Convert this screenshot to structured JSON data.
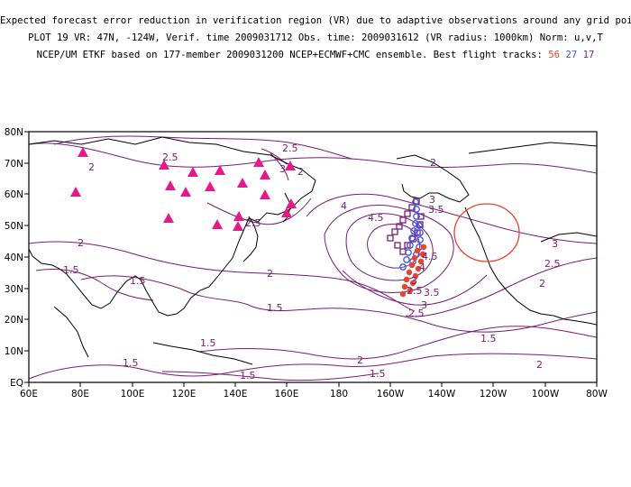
{
  "header": {
    "line1": "Expected forecast error reduction in verification region (VR) due to adaptive observations around any grid point.",
    "line2": "PLOT 19 VR: 47N, -124W, Verif. time 2009031712 Obs. time: 2009031612 (VR radius: 1000km) Norm: u,v,T",
    "line3_prefix": "NCEP/UM ETKF based on 177-member 2009031200 NCEP+ECMWF+CMC ensemble. Best flight tracks:",
    "track_a": "56",
    "track_b": "27",
    "track_c": "17"
  },
  "map": {
    "lon_labels": [
      "60E",
      "80E",
      "100E",
      "120E",
      "140E",
      "160E",
      "180",
      "160W",
      "140W",
      "120W",
      "100W",
      "80W"
    ],
    "lat_labels": [
      "80N",
      "70N",
      "60N",
      "50N",
      "40N",
      "30N",
      "20N",
      "10N",
      "EQ"
    ],
    "contour_labels": [
      "2",
      "2.5",
      "3",
      "2.5",
      "2",
      "2",
      "2.5",
      "4",
      "4.5",
      "3.5",
      "2",
      "1.5",
      "1.5",
      "2",
      "2.5",
      "3",
      "3.5",
      "4",
      "4.5",
      "3",
      "2.5",
      "2",
      "1.5",
      "1.5",
      "1.5",
      "1.5",
      "1.5",
      "2",
      "2",
      "1.5",
      "2.5",
      "3",
      "3"
    ],
    "colors": {
      "contour": "#7a1a7a",
      "coast": "#000000",
      "vr_circle": "#e8442c",
      "track_a": "#e8442c",
      "track_b": "#3b55e6",
      "track_c": "#7a1f7a",
      "triangle": "#e6198c"
    }
  }
}
